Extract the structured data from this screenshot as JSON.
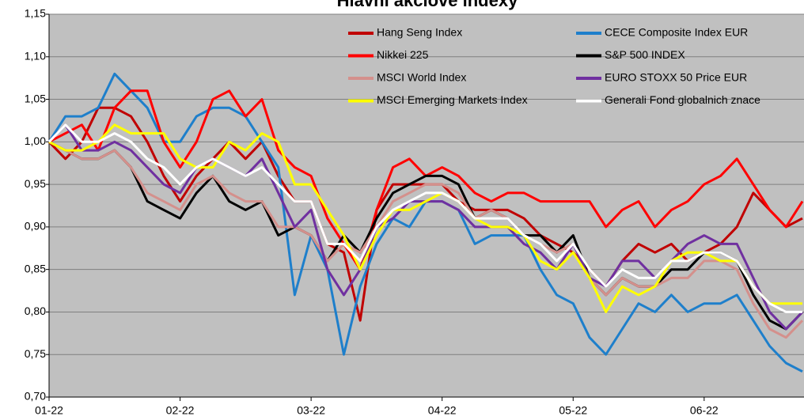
{
  "chart_data": {
    "type": "line",
    "title": "Hlavní akciové indexy",
    "categories": [
      "01-22",
      null,
      null,
      null,
      null,
      null,
      null,
      null,
      "02-22",
      null,
      null,
      null,
      null,
      null,
      null,
      null,
      "03-22",
      null,
      null,
      null,
      null,
      null,
      null,
      null,
      "04-22",
      null,
      null,
      null,
      null,
      null,
      null,
      null,
      "05-22",
      null,
      null,
      null,
      null,
      null,
      null,
      null,
      "06-22",
      null,
      null,
      null,
      null,
      null,
      null
    ],
    "series": [
      {
        "name": "Hang Seng Index",
        "color": "#c00000",
        "values": [
          1.0,
          0.98,
          1.0,
          1.04,
          1.04,
          1.03,
          1.0,
          0.96,
          0.93,
          0.96,
          0.98,
          1.0,
          0.98,
          1.0,
          0.96,
          0.93,
          0.93,
          0.88,
          0.87,
          0.79,
          0.92,
          0.95,
          0.95,
          0.95,
          0.95,
          0.93,
          0.92,
          0.92,
          0.92,
          0.91,
          0.89,
          0.88,
          0.87,
          0.85,
          0.83,
          0.86,
          0.88,
          0.87,
          0.88,
          0.86,
          0.87,
          0.88,
          0.9,
          0.94,
          0.92,
          0.9,
          0.91
        ]
      },
      {
        "name": "CECE Composite Index EUR",
        "color": "#1e7fcb",
        "values": [
          1.0,
          1.03,
          1.03,
          1.04,
          1.08,
          1.06,
          1.04,
          1.0,
          1.0,
          1.03,
          1.04,
          1.04,
          1.03,
          1.0,
          0.97,
          0.82,
          0.89,
          0.85,
          0.75,
          0.83,
          0.88,
          0.91,
          0.9,
          0.93,
          0.93,
          0.92,
          0.88,
          0.89,
          0.89,
          0.89,
          0.85,
          0.82,
          0.81,
          0.77,
          0.75,
          0.78,
          0.81,
          0.8,
          0.82,
          0.8,
          0.81,
          0.81,
          0.82,
          0.79,
          0.76,
          0.74,
          0.73
        ]
      },
      {
        "name": "Nikkei 225",
        "color": "#ff0000",
        "values": [
          1.0,
          1.01,
          1.02,
          0.99,
          1.04,
          1.06,
          1.06,
          1.0,
          0.97,
          1.0,
          1.05,
          1.06,
          1.03,
          1.05,
          0.99,
          0.97,
          0.96,
          0.91,
          0.88,
          0.85,
          0.92,
          0.97,
          0.98,
          0.96,
          0.97,
          0.96,
          0.94,
          0.93,
          0.94,
          0.94,
          0.93,
          0.93,
          0.93,
          0.93,
          0.9,
          0.92,
          0.93,
          0.9,
          0.92,
          0.93,
          0.95,
          0.96,
          0.98,
          0.95,
          0.92,
          0.9,
          0.93
        ]
      },
      {
        "name": "S&P 500 INDEX",
        "color": "#000000",
        "values": [
          1.0,
          0.99,
          0.98,
          0.98,
          0.99,
          0.97,
          0.93,
          0.92,
          0.91,
          0.94,
          0.96,
          0.93,
          0.92,
          0.93,
          0.89,
          0.9,
          0.89,
          0.86,
          0.89,
          0.87,
          0.91,
          0.94,
          0.95,
          0.96,
          0.96,
          0.95,
          0.91,
          0.92,
          0.91,
          0.89,
          0.89,
          0.87,
          0.89,
          0.84,
          0.82,
          0.84,
          0.83,
          0.83,
          0.85,
          0.85,
          0.87,
          0.87,
          0.86,
          0.82,
          0.79,
          0.78,
          0.8
        ]
      },
      {
        "name": "MSCI World Index",
        "color": "#d4908c",
        "values": [
          1.0,
          0.99,
          0.98,
          0.98,
          0.99,
          0.97,
          0.94,
          0.93,
          0.92,
          0.95,
          0.96,
          0.94,
          0.93,
          0.93,
          0.9,
          0.9,
          0.89,
          0.86,
          0.88,
          0.87,
          0.9,
          0.93,
          0.94,
          0.95,
          0.95,
          0.94,
          0.91,
          0.92,
          0.91,
          0.89,
          0.88,
          0.87,
          0.88,
          0.84,
          0.82,
          0.84,
          0.83,
          0.83,
          0.84,
          0.84,
          0.86,
          0.86,
          0.85,
          0.81,
          0.78,
          0.77,
          0.79
        ]
      },
      {
        "name": "EURO STOXX 50 Price EUR",
        "color": "#7030a0",
        "values": [
          1.0,
          1.02,
          0.99,
          0.99,
          1.0,
          0.99,
          0.97,
          0.95,
          0.94,
          0.97,
          0.98,
          0.97,
          0.96,
          0.98,
          0.94,
          0.9,
          0.92,
          0.85,
          0.82,
          0.85,
          0.9,
          0.91,
          0.93,
          0.93,
          0.93,
          0.92,
          0.9,
          0.9,
          0.9,
          0.88,
          0.87,
          0.85,
          0.88,
          0.84,
          0.83,
          0.86,
          0.86,
          0.84,
          0.86,
          0.88,
          0.89,
          0.88,
          0.88,
          0.84,
          0.8,
          0.78,
          0.8
        ]
      },
      {
        "name": "MSCI Emerging Markets Index",
        "color": "#ffff00",
        "values": [
          1.0,
          0.99,
          0.99,
          1.0,
          1.02,
          1.01,
          1.01,
          1.01,
          0.98,
          0.97,
          0.97,
          1.0,
          0.99,
          1.01,
          1.0,
          0.95,
          0.95,
          0.92,
          0.89,
          0.85,
          0.89,
          0.92,
          0.92,
          0.93,
          0.94,
          0.93,
          0.91,
          0.9,
          0.9,
          0.89,
          0.86,
          0.85,
          0.87,
          0.84,
          0.8,
          0.83,
          0.82,
          0.83,
          0.86,
          0.87,
          0.87,
          0.86,
          0.86,
          0.83,
          0.81,
          0.81,
          0.81
        ]
      },
      {
        "name": "Generali Fond globalnich znace",
        "color": "#ffffff",
        "values": [
          1.0,
          1.02,
          1.0,
          1.0,
          1.01,
          1.0,
          0.98,
          0.97,
          0.95,
          0.97,
          0.98,
          0.97,
          0.96,
          0.97,
          0.95,
          0.93,
          0.93,
          0.88,
          0.88,
          0.86,
          0.9,
          0.92,
          0.93,
          0.94,
          0.94,
          0.93,
          0.91,
          0.91,
          0.91,
          0.89,
          0.88,
          0.86,
          0.88,
          0.85,
          0.83,
          0.85,
          0.84,
          0.84,
          0.86,
          0.86,
          0.87,
          0.87,
          0.86,
          0.83,
          0.81,
          0.8,
          0.8
        ]
      }
    ],
    "ylim": [
      0.7,
      1.15
    ],
    "yticks": [
      {
        "value": 0.7,
        "label": "0,70"
      },
      {
        "value": 0.75,
        "label": "0,75"
      },
      {
        "value": 0.8,
        "label": "0,80"
      },
      {
        "value": 0.85,
        "label": "0,85"
      },
      {
        "value": 0.9,
        "label": "0,90"
      },
      {
        "value": 0.95,
        "label": "0,95"
      },
      {
        "value": 1.0,
        "label": "1,00"
      },
      {
        "value": 1.05,
        "label": "1,05"
      },
      {
        "value": 1.1,
        "label": "1,10"
      },
      {
        "value": 1.15,
        "label": "1,15"
      }
    ],
    "grid": true,
    "legend": "upper right",
    "background": "#c0c0c0"
  }
}
